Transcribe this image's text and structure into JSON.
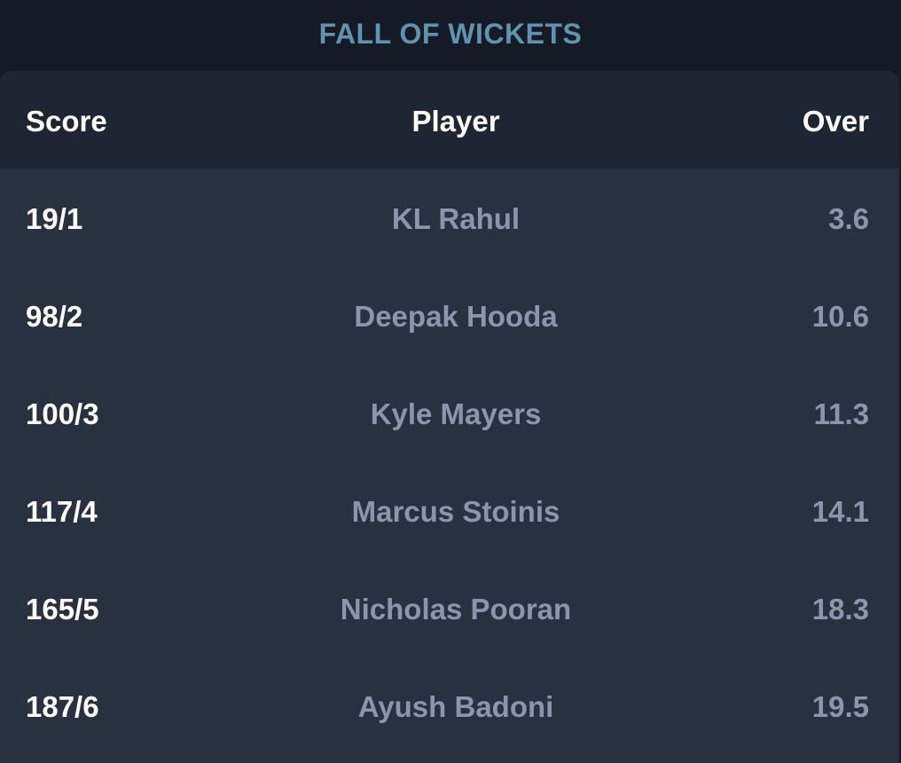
{
  "title": "FALL OF WICKETS",
  "columns": {
    "score": "Score",
    "player": "Player",
    "over": "Over"
  },
  "rows": [
    {
      "score": "19/1",
      "player": "KL Rahul",
      "over": "3.6"
    },
    {
      "score": "98/2",
      "player": "Deepak Hooda",
      "over": "10.6"
    },
    {
      "score": "100/3",
      "player": "Kyle Mayers",
      "over": "11.3"
    },
    {
      "score": "117/4",
      "player": "Marcus Stoinis",
      "over": "14.1"
    },
    {
      "score": "165/5",
      "player": "Nicholas Pooran",
      "over": "18.3"
    },
    {
      "score": "187/6",
      "player": "Ayush Badoni",
      "over": "19.5"
    }
  ],
  "colors": {
    "background": "#141a26",
    "card": "#283140",
    "header_row": "#1f2633",
    "title": "#5f93ae",
    "primary_text": "#ffffff",
    "secondary_text": "#8b96ad"
  }
}
